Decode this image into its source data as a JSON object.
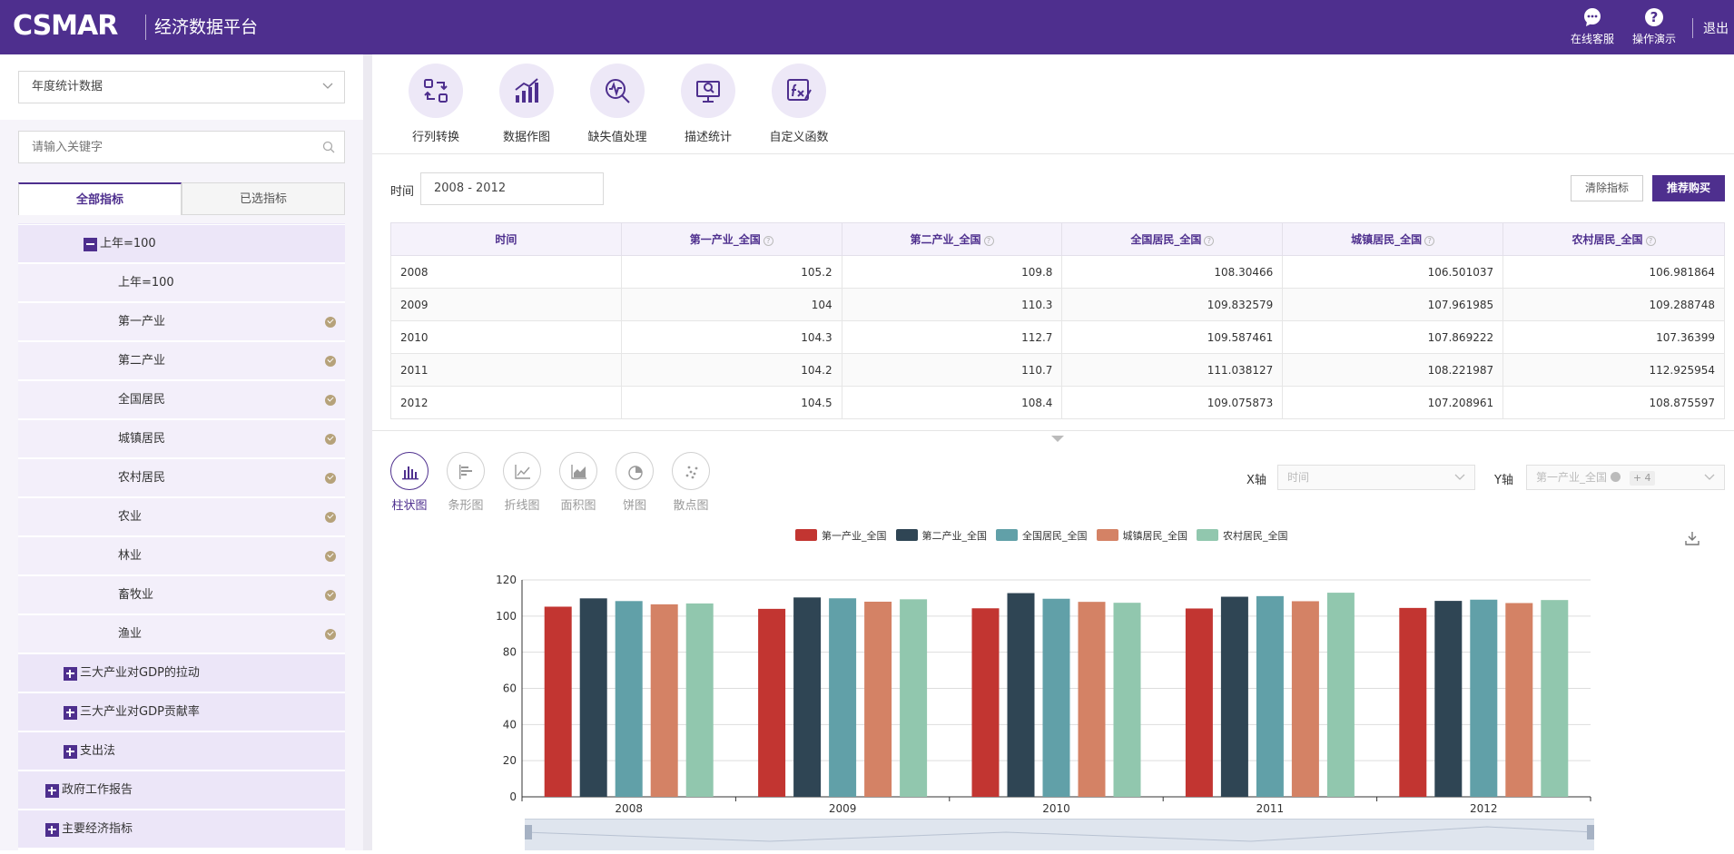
{
  "header": {
    "logo": "CSMAR",
    "subtitle": "经济数据平台",
    "service_label": "在线客服",
    "demo_label": "操作演示",
    "logout_label": "退出"
  },
  "sidebar": {
    "dataset_select": "年度统计数据",
    "search_placeholder": "请输入关键字",
    "tabs": [
      "全部指标",
      "已选指标"
    ],
    "tree": [
      {
        "label": "上年=100",
        "indent": 2,
        "toggle": "minus",
        "checked": false
      },
      {
        "label": "上年=100",
        "indent": 3,
        "toggle": "",
        "checked": false
      },
      {
        "label": "第一产业",
        "indent": 3,
        "toggle": "",
        "checked": true
      },
      {
        "label": "第二产业",
        "indent": 3,
        "toggle": "",
        "checked": true
      },
      {
        "label": "全国居民",
        "indent": 3,
        "toggle": "",
        "checked": true
      },
      {
        "label": "城镇居民",
        "indent": 3,
        "toggle": "",
        "checked": true
      },
      {
        "label": "农村居民",
        "indent": 3,
        "toggle": "",
        "checked": true
      },
      {
        "label": "农业",
        "indent": 3,
        "toggle": "",
        "checked": true
      },
      {
        "label": "林业",
        "indent": 3,
        "toggle": "",
        "checked": true
      },
      {
        "label": "畜牧业",
        "indent": 3,
        "toggle": "",
        "checked": true
      },
      {
        "label": "渔业",
        "indent": 3,
        "toggle": "",
        "checked": true
      },
      {
        "label": "三大产业对GDP的拉动",
        "indent": 1,
        "toggle": "plus",
        "checked": false
      },
      {
        "label": "三大产业对GDP贡献率",
        "indent": 1,
        "toggle": "plus",
        "checked": false
      },
      {
        "label": "支出法",
        "indent": 1,
        "toggle": "plus",
        "checked": false
      },
      {
        "label": "政府工作报告",
        "indent": 0,
        "toggle": "plus",
        "checked": false
      },
      {
        "label": "主要经济指标",
        "indent": 0,
        "toggle": "plus",
        "checked": false
      }
    ]
  },
  "toolbar": {
    "tools": [
      {
        "label": "行列转换",
        "icon": "transpose-icon"
      },
      {
        "label": "数据作图",
        "icon": "chart-icon"
      },
      {
        "label": "缺失值处理",
        "icon": "missing-value-icon"
      },
      {
        "label": "描述统计",
        "icon": "statistics-icon"
      },
      {
        "label": "自定义函数",
        "icon": "function-icon"
      }
    ]
  },
  "filter": {
    "time_label": "时间",
    "time_value": "2008 - 2012",
    "clear_label": "清除指标",
    "buy_label": "推荐购买"
  },
  "table": {
    "headers": [
      "时间",
      "第一产业_全国",
      "第二产业_全国",
      "全国居民_全国",
      "城镇居民_全国",
      "农村居民_全国"
    ],
    "rows": [
      [
        "2008",
        "105.2",
        "109.8",
        "108.30466",
        "106.501037",
        "106.981864"
      ],
      [
        "2009",
        "104",
        "110.3",
        "109.832579",
        "107.961985",
        "109.288748"
      ],
      [
        "2010",
        "104.3",
        "112.7",
        "109.587461",
        "107.869222",
        "107.36399"
      ],
      [
        "2011",
        "104.2",
        "110.7",
        "111.038127",
        "108.221987",
        "112.925954"
      ],
      [
        "2012",
        "104.5",
        "108.4",
        "109.075873",
        "107.208961",
        "108.875597"
      ]
    ]
  },
  "chart_controls": {
    "types": [
      "柱状图",
      "条形图",
      "折线图",
      "面积图",
      "饼图",
      "散点图"
    ],
    "active_type": "柱状图",
    "x_axis_label": "X轴",
    "x_axis_value": "时间",
    "y_axis_label": "Y轴",
    "y_axis_value": "第一产业_全国",
    "y_axis_more": "+ 4"
  },
  "chart_data": {
    "type": "bar",
    "categories": [
      "2008",
      "2009",
      "2010",
      "2011",
      "2012"
    ],
    "series": [
      {
        "name": "第一产业_全国",
        "color": "#c23531",
        "values": [
          105.2,
          104,
          104.3,
          104.2,
          104.5
        ]
      },
      {
        "name": "第二产业_全国",
        "color": "#2f4554",
        "values": [
          109.8,
          110.3,
          112.7,
          110.7,
          108.4
        ]
      },
      {
        "name": "全国居民_全国",
        "color": "#61a0a8",
        "values": [
          108.30466,
          109.832579,
          109.587461,
          111.038127,
          109.075873
        ]
      },
      {
        "name": "城镇居民_全国",
        "color": "#d48265",
        "values": [
          106.501037,
          107.961985,
          107.869222,
          108.221987,
          107.208961
        ]
      },
      {
        "name": "农村居民_全国",
        "color": "#91c7ae",
        "values": [
          106.981864,
          109.288748,
          107.36399,
          112.925954,
          108.875597
        ]
      }
    ],
    "yticks": [
      "0",
      "20",
      "40",
      "60",
      "80",
      "100",
      "120"
    ],
    "ylim": [
      0,
      120
    ],
    "grid": true,
    "legend_position": "top-center"
  }
}
